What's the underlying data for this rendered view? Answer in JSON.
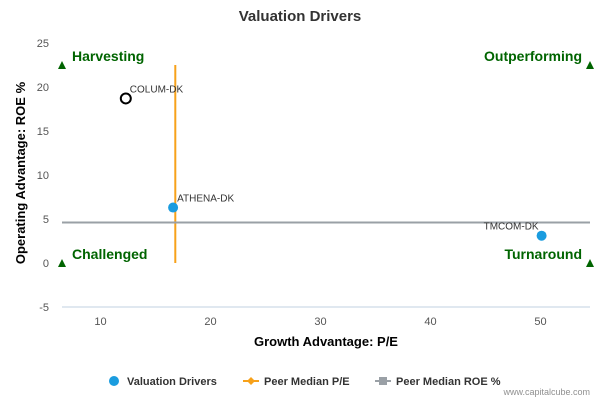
{
  "chart_data": {
    "type": "scatter",
    "title": "Valuation Drivers",
    "xlabel": "Growth Advantage: P/E",
    "ylabel": "Operating Advantage: ROE %",
    "xlim": [
      6.5,
      54.5
    ],
    "ylim": [
      -5,
      25
    ],
    "x_ticks": [
      10,
      20,
      30,
      40,
      50
    ],
    "y_ticks": [
      -5,
      0,
      5,
      10,
      15,
      20,
      25
    ],
    "grid": false,
    "legend_position": "bottom",
    "series": [
      {
        "name": "Valuation Drivers",
        "color": "#1a9cdf",
        "points": [
          {
            "label": "COLUM-DK",
            "x": 12.3,
            "y": 18.7,
            "marker": "hollow-circle",
            "label_side": "right"
          },
          {
            "label": "ATHENA-DK",
            "x": 16.6,
            "y": 6.3,
            "marker": "filled-circle",
            "label_side": "right"
          },
          {
            "label": "TMCOM-DK",
            "x": 50.1,
            "y": 3.1,
            "marker": "filled-circle",
            "label_side": "left"
          }
        ]
      }
    ],
    "reference_lines": [
      {
        "name": "Peer Median P/E",
        "orientation": "vertical",
        "x": 16.8,
        "y_from": 0,
        "y_to": 22.5,
        "color": "#f7a11a"
      },
      {
        "name": "Peer Median ROE %",
        "orientation": "horizontal",
        "y": 4.6,
        "color": "#9aa0a6"
      }
    ],
    "quadrants": {
      "top_left": "Harvesting",
      "top_right": "Outperforming",
      "bottom_left": "Challenged",
      "bottom_right": "Turnaround",
      "color": "#006400"
    }
  },
  "legend": [
    {
      "label": "Valuation Drivers",
      "type": "dot",
      "color": "#1a9cdf"
    },
    {
      "label": "Peer Median P/E",
      "type": "line-diamond",
      "color": "#f7a11a"
    },
    {
      "label": "Peer Median ROE %",
      "type": "line-square",
      "color": "#9aa0a6"
    }
  ],
  "credit": "www.capitalcube.com"
}
